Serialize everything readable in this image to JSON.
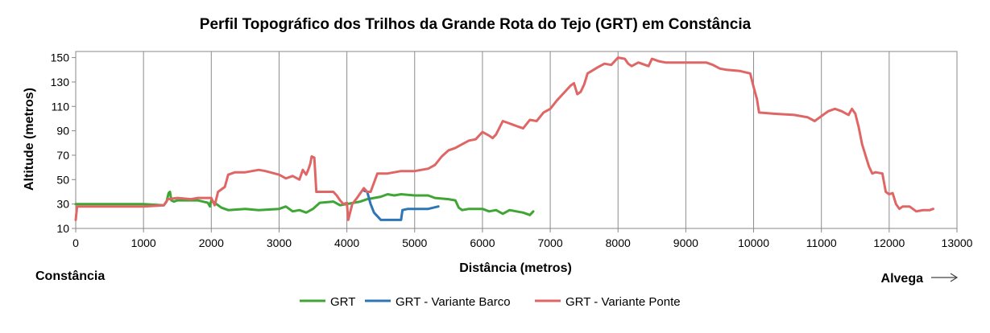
{
  "chart_data": {
    "type": "line",
    "title": "Perfil Topográfico dos Trilhos da Grande Rota do Tejo (GRT) em Constância",
    "xlabel": "Distância (metros)",
    "ylabel": "Altitude (metros)",
    "xlim": [
      0,
      13000
    ],
    "ylim": [
      10,
      155
    ],
    "x_ticks": [
      0,
      1000,
      2000,
      3000,
      4000,
      5000,
      6000,
      7000,
      8000,
      9000,
      10000,
      11000,
      12000,
      13000
    ],
    "y_ticks": [
      10,
      30,
      50,
      70,
      90,
      110,
      130,
      150
    ],
    "x_tick_labels": [
      "0",
      "1000",
      "2000",
      "3000",
      "4000",
      "5000",
      "6000",
      "7000",
      "8000",
      "9000",
      "10000",
      "11000",
      "12000",
      "13000"
    ],
    "y_tick_labels": [
      "10",
      "30",
      "50",
      "70",
      "90",
      "110",
      "130",
      "150"
    ],
    "grid": "vertical",
    "legend_position": "bottom",
    "start_label": "Constância",
    "end_label": "Alvega",
    "end_arrow": "→",
    "series": [
      {
        "name": "GRT",
        "color": "#3fa535",
        "points": [
          [
            0,
            30
          ],
          [
            500,
            30
          ],
          [
            1000,
            30
          ],
          [
            1300,
            29
          ],
          [
            1340,
            32
          ],
          [
            1370,
            39
          ],
          [
            1390,
            40
          ],
          [
            1410,
            33
          ],
          [
            1450,
            32
          ],
          [
            1500,
            33
          ],
          [
            1800,
            33
          ],
          [
            1950,
            31
          ],
          [
            1980,
            28
          ],
          [
            2000,
            33
          ],
          [
            2050,
            31
          ],
          [
            2150,
            27
          ],
          [
            2250,
            25
          ],
          [
            2500,
            26
          ],
          [
            2700,
            25
          ],
          [
            3000,
            26
          ],
          [
            3100,
            28
          ],
          [
            3200,
            24
          ],
          [
            3300,
            25
          ],
          [
            3400,
            23
          ],
          [
            3500,
            26
          ],
          [
            3600,
            31
          ],
          [
            3800,
            32
          ],
          [
            3900,
            29
          ],
          [
            4000,
            30
          ],
          [
            4100,
            31
          ],
          [
            4200,
            32
          ],
          [
            4300,
            34
          ],
          [
            4400,
            35
          ],
          [
            4500,
            36
          ],
          [
            4600,
            38
          ],
          [
            4700,
            37
          ],
          [
            4800,
            38
          ],
          [
            5000,
            37
          ],
          [
            5200,
            37
          ],
          [
            5300,
            35
          ],
          [
            5500,
            34
          ],
          [
            5600,
            33
          ],
          [
            5650,
            27
          ],
          [
            5700,
            25
          ],
          [
            5800,
            26
          ],
          [
            6000,
            26
          ],
          [
            6100,
            24
          ],
          [
            6200,
            25
          ],
          [
            6300,
            22
          ],
          [
            6400,
            25
          ],
          [
            6500,
            24
          ],
          [
            6600,
            23
          ],
          [
            6700,
            21
          ],
          [
            6750,
            24
          ]
        ]
      },
      {
        "name": "GRT - Variante Barco",
        "color": "#2e75b6",
        "points": [
          [
            4250,
            41
          ],
          [
            4300,
            40
          ],
          [
            4350,
            30
          ],
          [
            4400,
            23
          ],
          [
            4450,
            20
          ],
          [
            4500,
            17
          ],
          [
            4800,
            17
          ],
          [
            4820,
            25
          ],
          [
            4900,
            26
          ],
          [
            5200,
            26
          ],
          [
            5350,
            28
          ]
        ]
      },
      {
        "name": "GRT - Variante Ponte",
        "color": "#e06666",
        "points": [
          [
            0,
            17
          ],
          [
            20,
            28
          ],
          [
            1000,
            28
          ],
          [
            1300,
            29
          ],
          [
            1360,
            34
          ],
          [
            1500,
            35
          ],
          [
            1700,
            34
          ],
          [
            1800,
            35
          ],
          [
            2000,
            35
          ],
          [
            2050,
            29
          ],
          [
            2100,
            40
          ],
          [
            2200,
            44
          ],
          [
            2250,
            54
          ],
          [
            2350,
            56
          ],
          [
            2500,
            56
          ],
          [
            2700,
            58
          ],
          [
            2800,
            57
          ],
          [
            3000,
            54
          ],
          [
            3100,
            51
          ],
          [
            3200,
            53
          ],
          [
            3300,
            50
          ],
          [
            3350,
            58
          ],
          [
            3400,
            54
          ],
          [
            3430,
            58
          ],
          [
            3460,
            63
          ],
          [
            3480,
            69
          ],
          [
            3520,
            68
          ],
          [
            3550,
            40
          ],
          [
            3800,
            40
          ],
          [
            3850,
            37
          ],
          [
            3900,
            33
          ],
          [
            3950,
            30
          ],
          [
            4000,
            31
          ],
          [
            4020,
            17
          ],
          [
            4080,
            30
          ],
          [
            4150,
            35
          ],
          [
            4250,
            43
          ],
          [
            4300,
            40
          ],
          [
            4350,
            40
          ],
          [
            4450,
            55
          ],
          [
            4600,
            55
          ],
          [
            4800,
            57
          ],
          [
            5000,
            57
          ],
          [
            5200,
            59
          ],
          [
            5300,
            62
          ],
          [
            5400,
            69
          ],
          [
            5500,
            74
          ],
          [
            5600,
            76
          ],
          [
            5700,
            79
          ],
          [
            5800,
            82
          ],
          [
            5900,
            83
          ],
          [
            6000,
            89
          ],
          [
            6100,
            86
          ],
          [
            6150,
            84
          ],
          [
            6200,
            87
          ],
          [
            6300,
            98
          ],
          [
            6400,
            96
          ],
          [
            6500,
            94
          ],
          [
            6600,
            92
          ],
          [
            6700,
            99
          ],
          [
            6800,
            98
          ],
          [
            6900,
            105
          ],
          [
            7000,
            108
          ],
          [
            7100,
            115
          ],
          [
            7200,
            121
          ],
          [
            7300,
            127
          ],
          [
            7350,
            129
          ],
          [
            7400,
            120
          ],
          [
            7450,
            122
          ],
          [
            7500,
            128
          ],
          [
            7550,
            137
          ],
          [
            7700,
            142
          ],
          [
            7800,
            145
          ],
          [
            7900,
            144
          ],
          [
            8000,
            150
          ],
          [
            8100,
            149
          ],
          [
            8150,
            145
          ],
          [
            8200,
            143
          ],
          [
            8300,
            146
          ],
          [
            8450,
            143
          ],
          [
            8500,
            149
          ],
          [
            8600,
            147
          ],
          [
            8700,
            146
          ],
          [
            9000,
            146
          ],
          [
            9300,
            146
          ],
          [
            9400,
            144
          ],
          [
            9500,
            141
          ],
          [
            9600,
            140
          ],
          [
            9800,
            139
          ],
          [
            9950,
            137
          ],
          [
            10000,
            126
          ],
          [
            10050,
            116
          ],
          [
            10080,
            105
          ],
          [
            10300,
            104
          ],
          [
            10600,
            103
          ],
          [
            10700,
            102
          ],
          [
            10800,
            101
          ],
          [
            10900,
            98
          ],
          [
            11000,
            102
          ],
          [
            11100,
            106
          ],
          [
            11200,
            108
          ],
          [
            11300,
            106
          ],
          [
            11400,
            103
          ],
          [
            11450,
            108
          ],
          [
            11500,
            104
          ],
          [
            11550,
            93
          ],
          [
            11600,
            79
          ],
          [
            11650,
            70
          ],
          [
            11700,
            61
          ],
          [
            11750,
            55
          ],
          [
            11800,
            56
          ],
          [
            11900,
            55
          ],
          [
            11950,
            40
          ],
          [
            12000,
            38
          ],
          [
            12050,
            39
          ],
          [
            12100,
            30
          ],
          [
            12150,
            26
          ],
          [
            12200,
            28
          ],
          [
            12300,
            28
          ],
          [
            12400,
            24
          ],
          [
            12500,
            25
          ],
          [
            12600,
            25
          ],
          [
            12650,
            26
          ]
        ]
      }
    ]
  }
}
